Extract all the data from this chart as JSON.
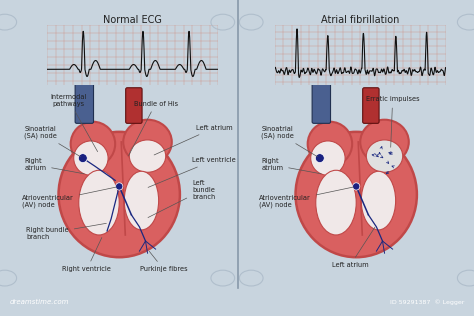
{
  "bg_color": "#c8d4de",
  "panel_bg": "#c8d4de",
  "footer_color": "#2a7090",
  "heart_red": "#d96060",
  "heart_dark": "#c04848",
  "heart_inner": "#f0e8e8",
  "vessel_blue": "#4a6090",
  "vessel_red": "#b03030",
  "conduction_color": "#1a2880",
  "node_color": "#1a2080",
  "ecg_bg": "#f0c8c0",
  "ecg_grid": "#d08070",
  "ecg_line": "#111111",
  "text_color": "#222222",
  "title1": "Normal ECG",
  "title2": "Atrial fibrillation",
  "watermark_left": "dreamstime.com",
  "watermark_right": "ID 59291387  © Legger",
  "fibrillation_color": "#e0e0e0",
  "divider_color": "#8899aa"
}
